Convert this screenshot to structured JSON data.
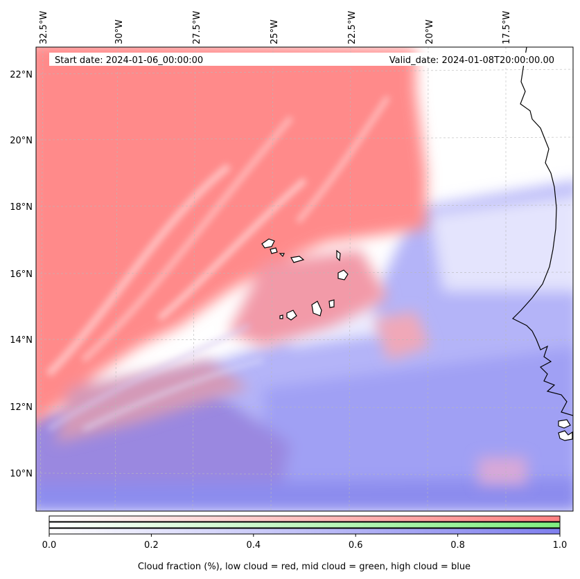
{
  "map": {
    "lon_labels": [
      "32.5°W",
      "30°W",
      "27.5°W",
      "25°W",
      "22.5°W",
      "20°W",
      "17.5°W"
    ],
    "lat_labels": [
      "22°N",
      "20°N",
      "18°N",
      "16°N",
      "14°N",
      "12°N",
      "10°N"
    ],
    "start_date_text": "Start date: 2024-01-06_00:00:00",
    "valid_date_text": "Valid_date: 2024-01-08T20:00:00.00",
    "layers": [
      {
        "name": "low cloud",
        "color": "#ff8080"
      },
      {
        "name": "mid cloud",
        "color": "#80ee80"
      },
      {
        "name": "high cloud",
        "color": "#8080ee"
      }
    ]
  },
  "colorbar": {
    "ticks": [
      "0.0",
      "0.2",
      "0.4",
      "0.6",
      "0.8",
      "1.0"
    ],
    "label": "Cloud fraction (%), low cloud = red, mid cloud = green, high cloud = blue",
    "range": [
      0,
      1
    ],
    "colors": {
      "low": "#ff8080",
      "mid": "#88ee88",
      "high": "#8080ee"
    }
  }
}
